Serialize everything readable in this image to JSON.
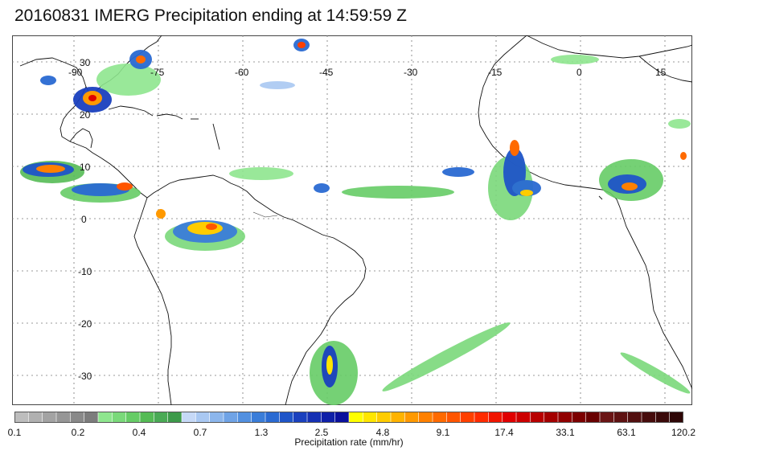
{
  "title": "20160831 IMERG Precipitation ending at 14:59:59 Z",
  "map": {
    "lon_labels": [
      "-90",
      "-75",
      "-60",
      "-45",
      "-30",
      "-15",
      "0",
      "15"
    ],
    "lat_labels": [
      "30",
      "20",
      "10",
      "0",
      "-10",
      "-20",
      "-30"
    ],
    "lon_range": [
      -95,
      20
    ],
    "lat_range": [
      -38,
      35
    ],
    "grid": "dotted"
  },
  "colorbar": {
    "title": "Precipitation rate (mm/hr)",
    "labels": [
      "0.1",
      "0.2",
      "0.4",
      "0.7",
      "1.3",
      "2.5",
      "4.8",
      "9.1",
      "17.4",
      "33.1",
      "63.1",
      "120.2"
    ],
    "colors": [
      "#bdbdbd",
      "#b0b0b0",
      "#a3a3a3",
      "#969696",
      "#898989",
      "#7c7c7c",
      "#8ee68e",
      "#7ad97a",
      "#66cc66",
      "#55bb55",
      "#4aaa55",
      "#3d9a4a",
      "#c6d9f7",
      "#a9c8f2",
      "#8cb6ec",
      "#6fa3e6",
      "#5290e0",
      "#3a7dd9",
      "#2a6ad2",
      "#1f55c8",
      "#1a40be",
      "#1530b3",
      "#0f20a8",
      "#0a109c",
      "#ffff00",
      "#ffe600",
      "#ffcc00",
      "#ffb300",
      "#ff9900",
      "#ff8000",
      "#ff6a00",
      "#ff5500",
      "#ff4000",
      "#ff2b00",
      "#f01500",
      "#e00000",
      "#cc0000",
      "#b80000",
      "#a40000",
      "#900000",
      "#7c0000",
      "#680000",
      "#6a1515",
      "#5e1212",
      "#520f0f",
      "#460c0c",
      "#3a0909",
      "#2e0606"
    ]
  }
}
